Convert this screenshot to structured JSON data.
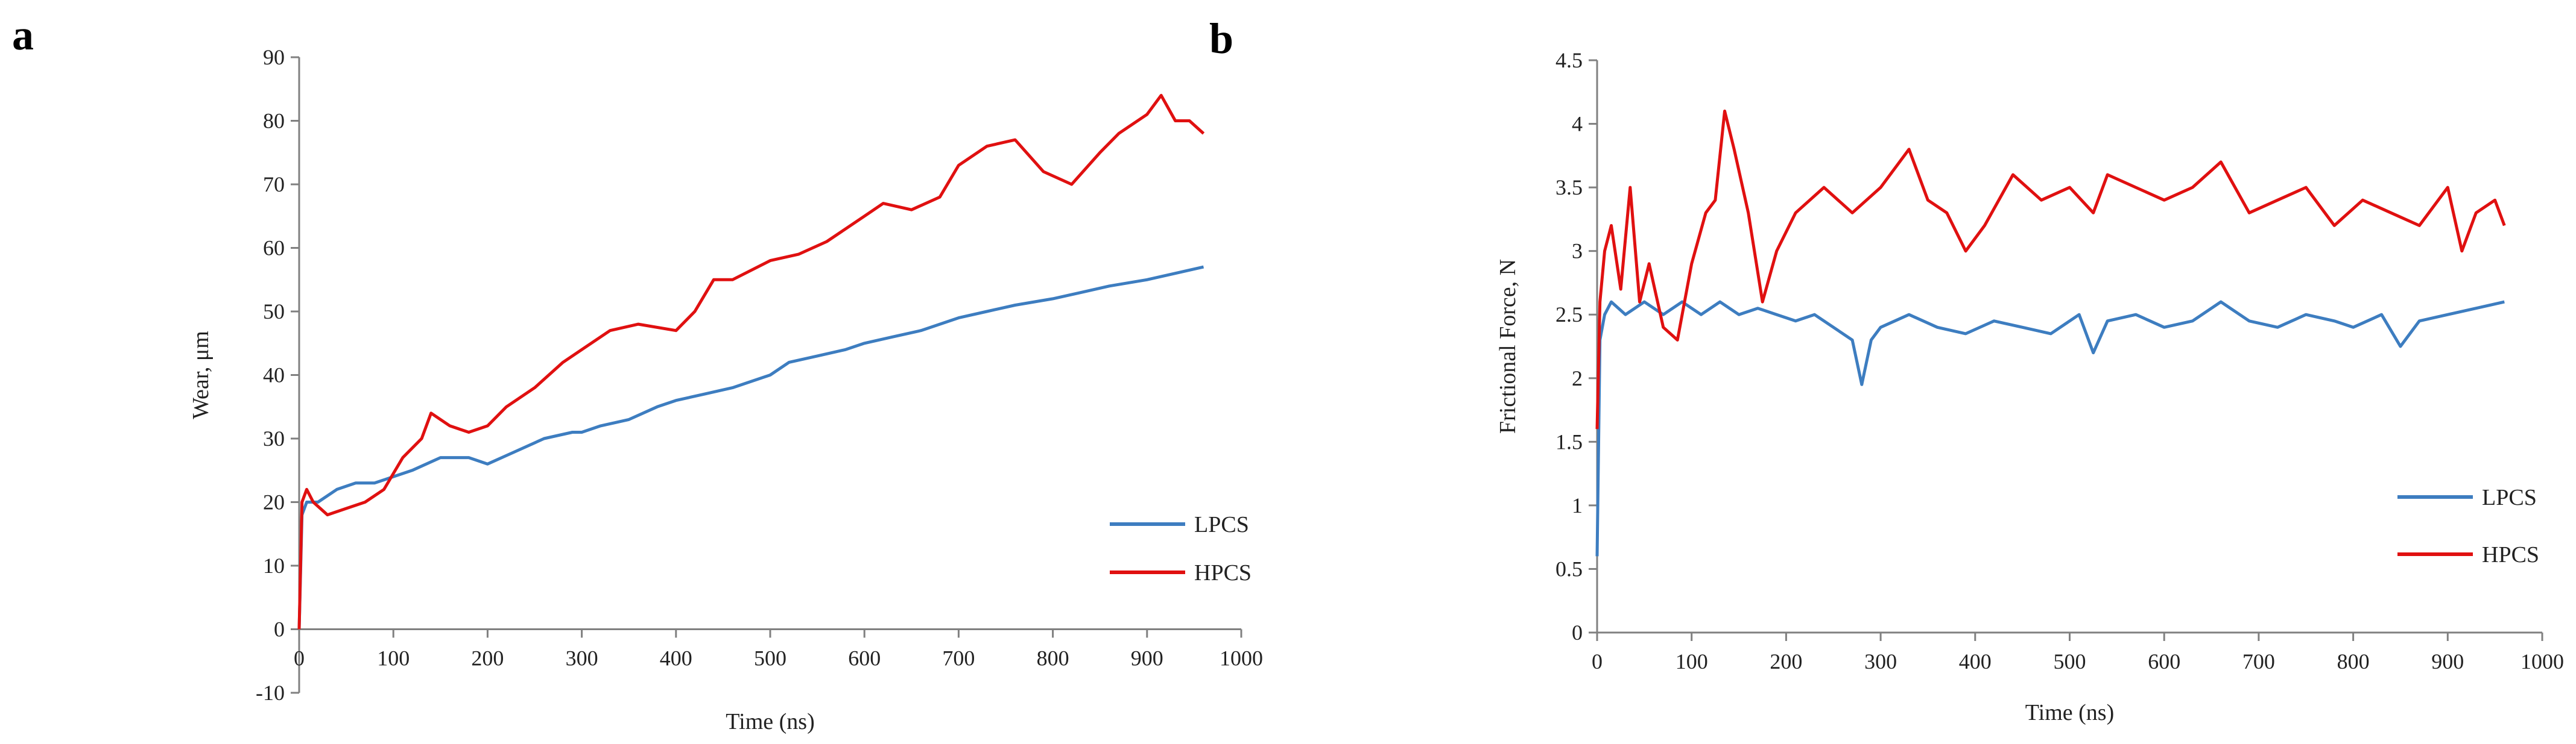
{
  "figure": {
    "panels": [
      "a",
      "b"
    ]
  },
  "colors": {
    "LPCS": "#3d7dc0",
    "HPCS": "#e01010",
    "axis": "#808080"
  },
  "chart_data": [
    {
      "panel": "a",
      "type": "line",
      "title": "",
      "xlabel": "Time  (ns)",
      "ylabel": "Wear, μm",
      "xlim": [
        0,
        1000
      ],
      "ylim": [
        -10,
        90
      ],
      "xticks": [
        0,
        100,
        200,
        300,
        400,
        500,
        600,
        700,
        800,
        900,
        1000
      ],
      "yticks": [
        -10,
        0,
        10,
        20,
        30,
        40,
        50,
        60,
        70,
        80,
        90
      ],
      "legend": "bottom-right",
      "series": [
        {
          "name": "LPCS",
          "x": [
            0,
            3,
            8,
            20,
            40,
            60,
            80,
            100,
            120,
            150,
            180,
            200,
            230,
            260,
            290,
            300,
            320,
            350,
            380,
            400,
            430,
            460,
            500,
            520,
            550,
            580,
            600,
            630,
            660,
            700,
            730,
            760,
            800,
            830,
            860,
            900,
            930,
            960
          ],
          "values": [
            0,
            18,
            20,
            20,
            22,
            23,
            23,
            24,
            25,
            27,
            27,
            26,
            28,
            30,
            31,
            31,
            32,
            33,
            35,
            36,
            37,
            38,
            40,
            42,
            43,
            44,
            45,
            46,
            47,
            49,
            50,
            51,
            52,
            53,
            54,
            55,
            56,
            57
          ]
        },
        {
          "name": "HPCS",
          "x": [
            0,
            3,
            8,
            15,
            30,
            50,
            70,
            90,
            110,
            130,
            140,
            160,
            180,
            200,
            220,
            250,
            280,
            300,
            330,
            360,
            400,
            420,
            440,
            460,
            500,
            530,
            560,
            600,
            620,
            650,
            680,
            700,
            730,
            760,
            790,
            820,
            850,
            870,
            900,
            915,
            930,
            945,
            960
          ],
          "values": [
            0,
            20,
            22,
            20,
            18,
            19,
            20,
            22,
            27,
            30,
            34,
            32,
            31,
            32,
            35,
            38,
            42,
            44,
            47,
            48,
            47,
            50,
            55,
            55,
            58,
            59,
            61,
            65,
            67,
            66,
            68,
            73,
            76,
            77,
            72,
            70,
            75,
            78,
            81,
            84,
            80,
            80,
            78
          ]
        }
      ]
    },
    {
      "panel": "b",
      "type": "line",
      "title": "",
      "xlabel": "Time  (ns)",
      "ylabel": "Frictional  Force, N",
      "xlim": [
        0,
        1000
      ],
      "ylim": [
        0,
        4.5
      ],
      "xticks": [
        0,
        100,
        200,
        300,
        400,
        500,
        600,
        700,
        800,
        900,
        1000
      ],
      "yticks": [
        0,
        0.5,
        1,
        1.5,
        2,
        2.5,
        3,
        3.5,
        4,
        4.5
      ],
      "legend": "bottom-right",
      "series": [
        {
          "name": "LPCS",
          "x": [
            0,
            3,
            8,
            15,
            30,
            50,
            70,
            90,
            110,
            130,
            150,
            170,
            190,
            210,
            230,
            250,
            270,
            280,
            290,
            300,
            330,
            360,
            390,
            420,
            450,
            480,
            510,
            525,
            540,
            570,
            600,
            630,
            660,
            690,
            720,
            750,
            780,
            800,
            830,
            850,
            870,
            900,
            930,
            960
          ],
          "values": [
            0.6,
            2.3,
            2.5,
            2.6,
            2.5,
            2.6,
            2.5,
            2.6,
            2.5,
            2.6,
            2.5,
            2.55,
            2.5,
            2.45,
            2.5,
            2.4,
            2.3,
            1.95,
            2.3,
            2.4,
            2.5,
            2.4,
            2.35,
            2.45,
            2.4,
            2.35,
            2.5,
            2.2,
            2.45,
            2.5,
            2.4,
            2.45,
            2.6,
            2.45,
            2.4,
            2.5,
            2.45,
            2.4,
            2.5,
            2.25,
            2.45,
            2.5,
            2.55,
            2.6
          ]
        },
        {
          "name": "HPCS",
          "x": [
            0,
            3,
            8,
            15,
            25,
            35,
            45,
            55,
            70,
            85,
            100,
            115,
            125,
            135,
            145,
            160,
            175,
            190,
            210,
            240,
            270,
            300,
            330,
            350,
            370,
            390,
            410,
            440,
            470,
            500,
            525,
            540,
            570,
            600,
            630,
            660,
            690,
            720,
            750,
            780,
            810,
            840,
            870,
            900,
            915,
            930,
            950,
            960
          ],
          "values": [
            1.6,
            2.6,
            3.0,
            3.2,
            2.7,
            3.5,
            2.6,
            2.9,
            2.4,
            2.3,
            2.9,
            3.3,
            3.4,
            4.1,
            3.8,
            3.3,
            2.6,
            3.0,
            3.3,
            3.5,
            3.3,
            3.5,
            3.8,
            3.4,
            3.3,
            3.0,
            3.2,
            3.6,
            3.4,
            3.5,
            3.3,
            3.6,
            3.5,
            3.4,
            3.5,
            3.7,
            3.3,
            3.4,
            3.5,
            3.2,
            3.4,
            3.3,
            3.2,
            3.5,
            3.0,
            3.3,
            3.4,
            3.2
          ]
        }
      ]
    }
  ]
}
